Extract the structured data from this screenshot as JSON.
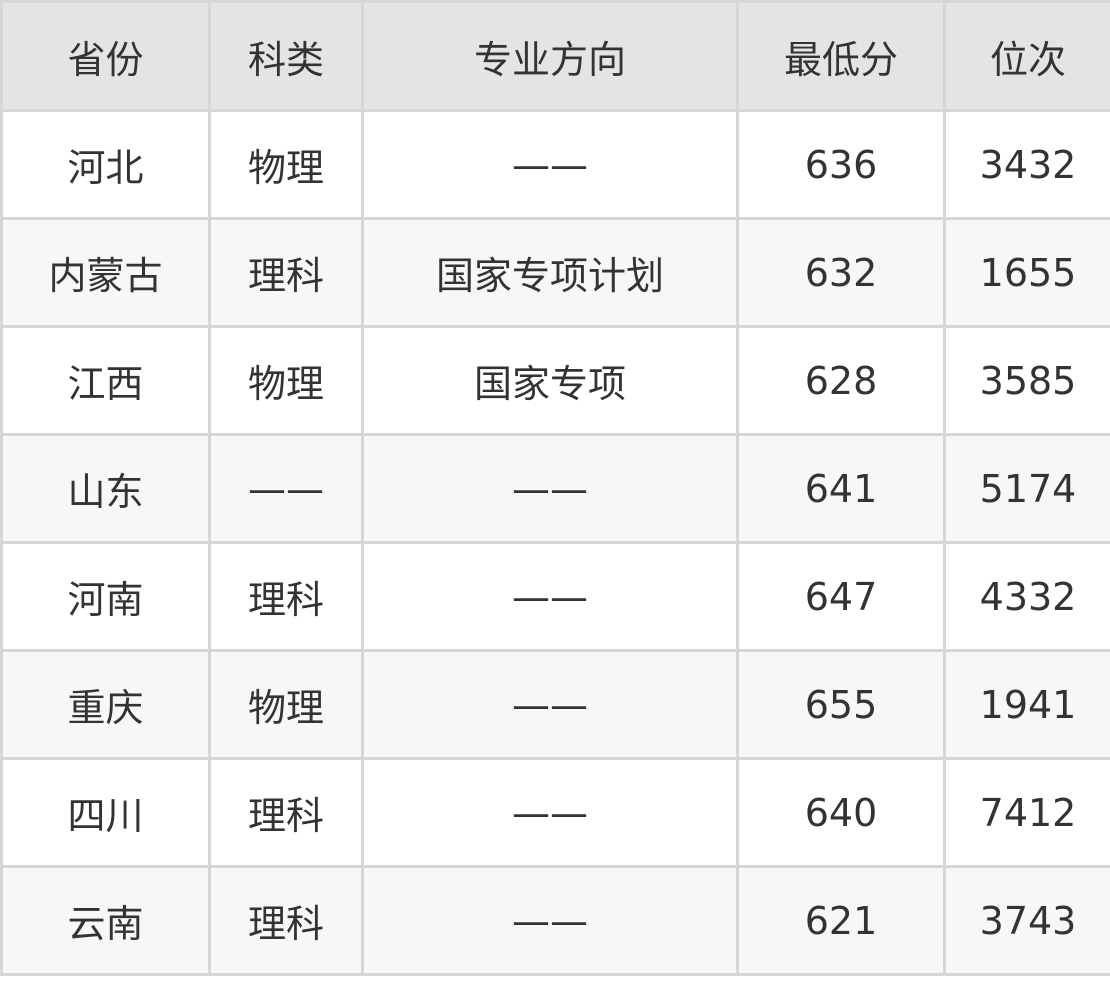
{
  "table": {
    "headers": [
      "省份",
      "科类",
      "专业方向",
      "最低分",
      "位次"
    ],
    "rows": [
      [
        "河北",
        "物理",
        "——",
        "636",
        "3432"
      ],
      [
        "内蒙古",
        "理科",
        "国家专项计划",
        "632",
        "1655"
      ],
      [
        "江西",
        "物理",
        "国家专项",
        "628",
        "3585"
      ],
      [
        "山东",
        "——",
        "——",
        "641",
        "5174"
      ],
      [
        "河南",
        "理科",
        "——",
        "647",
        "4332"
      ],
      [
        "重庆",
        "物理",
        "——",
        "655",
        "1941"
      ],
      [
        "四川",
        "理科",
        "——",
        "640",
        "7412"
      ],
      [
        "云南",
        "理科",
        "——",
        "621",
        "3743"
      ]
    ]
  },
  "colors": {
    "header_bg": "#e4e4e4",
    "alt_row_bg": "#f7f7f7",
    "border": "#d6d6d6",
    "text": "#333333"
  }
}
